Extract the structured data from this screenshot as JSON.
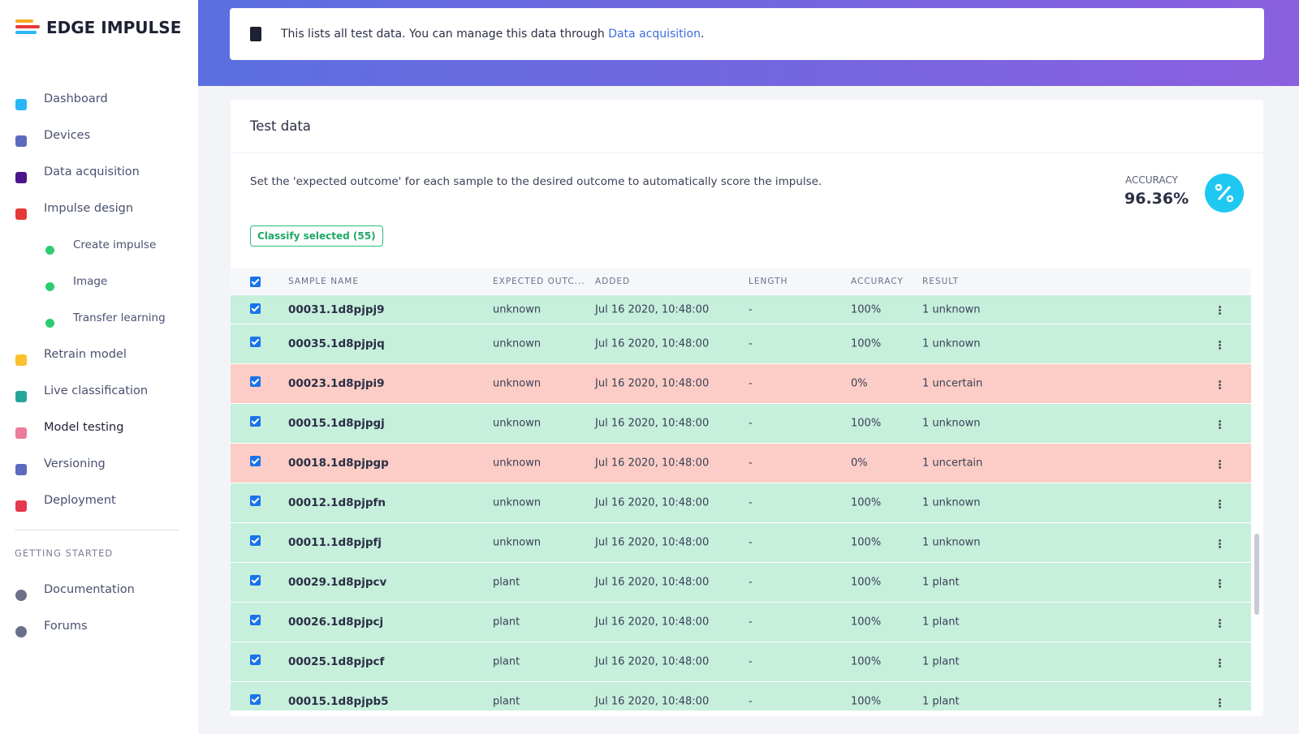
{
  "logo": "EDGE IMPULSE",
  "nav": [
    "Dashboard",
    "Devices",
    "Data acquisition",
    "Impulse design",
    "Create impulse",
    "Image",
    "Transfer learning",
    "Retrain model",
    "Live classification",
    "Model testing",
    "Versioning",
    "Deployment"
  ],
  "section": "GETTING STARTED",
  "help": [
    "Documentation",
    "Forums"
  ],
  "banner": {
    "text": "This lists all test data. You can manage this data through ",
    "link": "Data acquisition",
    "end": "."
  },
  "card": {
    "title": "Test data",
    "description": "Set the 'expected outcome' for each sample to the desired outcome to automatically score the impulse.",
    "accuracy_label": "ACCURACY",
    "accuracy": "96.36%",
    "button": "Classify selected (55)"
  },
  "table": {
    "headers": [
      "SAMPLE NAME",
      "EXPECTED OUTC...",
      "ADDED",
      "LENGTH",
      "ACCURACY",
      "RESULT"
    ],
    "rows": [
      {
        "cells": [
          "00031.1d8pjpj9",
          "unknown",
          "Jul 16 2020, 10:48:00",
          "-",
          "100%",
          "1 unknown"
        ],
        "color": "#c6efdc"
      },
      {
        "cells": [
          "00035.1d8pjpjq",
          "unknown",
          "Jul 16 2020, 10:48:00",
          "-",
          "100%",
          "1 unknown"
        ],
        "color": "#c6efdc"
      },
      {
        "cells": [
          "00023.1d8pjpi9",
          "unknown",
          "Jul 16 2020, 10:48:00",
          "-",
          "0%",
          "1 uncertain"
        ],
        "color": "#fccdc6"
      },
      {
        "cells": [
          "00015.1d8pjpgj",
          "unknown",
          "Jul 16 2020, 10:48:00",
          "-",
          "100%",
          "1 unknown"
        ],
        "color": "#c6efdc"
      },
      {
        "cells": [
          "00018.1d8pjpgp",
          "unknown",
          "Jul 16 2020, 10:48:00",
          "-",
          "0%",
          "1 uncertain"
        ],
        "color": "#fccdc6"
      },
      {
        "cells": [
          "00012.1d8pjpfn",
          "unknown",
          "Jul 16 2020, 10:48:00",
          "-",
          "100%",
          "1 unknown"
        ],
        "color": "#c6efdc"
      },
      {
        "cells": [
          "00011.1d8pjpfj",
          "unknown",
          "Jul 16 2020, 10:48:00",
          "-",
          "100%",
          "1 unknown"
        ],
        "color": "#c6efdc"
      },
      {
        "cells": [
          "00029.1d8pjpcv",
          "plant",
          "Jul 16 2020, 10:48:00",
          "-",
          "100%",
          "1 plant"
        ],
        "color": "#c6efdc"
      },
      {
        "cells": [
          "00026.1d8pjpcj",
          "plant",
          "Jul 16 2020, 10:48:00",
          "-",
          "100%",
          "1 plant"
        ],
        "color": "#c6efdc"
      },
      {
        "cells": [
          "00025.1d8pjpcf",
          "plant",
          "Jul 16 2020, 10:48:00",
          "-",
          "100%",
          "1 plant"
        ],
        "color": "#c6efdc"
      },
      {
        "cells": [
          "00015.1d8pjpb5",
          "plant",
          "Jul 16 2020, 10:48:00",
          "-",
          "100%",
          "1 plant"
        ],
        "color": "#c6efdc"
      }
    ]
  }
}
